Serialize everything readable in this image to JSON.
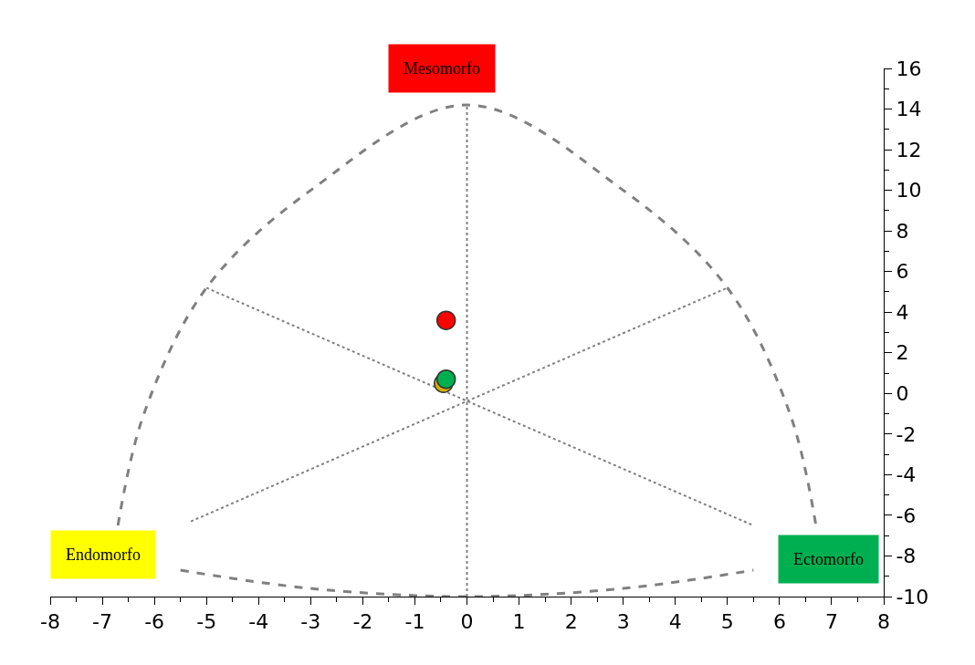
{
  "chart_data": {
    "type": "scatter",
    "xlim": [
      -8,
      8
    ],
    "ylim": [
      -10,
      16
    ],
    "xticks": [
      -8,
      -7,
      -6,
      -5,
      -4,
      -3,
      -2,
      -1,
      0,
      1,
      2,
      3,
      4,
      5,
      6,
      7,
      8
    ],
    "yticks": [
      -10,
      -8,
      -6,
      -4,
      -2,
      0,
      2,
      4,
      6,
      8,
      10,
      12,
      14,
      16
    ],
    "ref_lines": [
      {
        "axis": "x",
        "value": 0,
        "color": "#808080",
        "line_style": "dotted"
      }
    ],
    "grid": false,
    "annotations": [
      "Mesomorfo",
      "Endomorfo",
      "Ectomorfo"
    ],
    "series": [
      {
        "type": "line",
        "color": "#808080",
        "line_style": "dashed",
        "marker": "none",
        "x": [
          -6.7,
          -6.2,
          -5.0,
          -3.0,
          0.0,
          3.0,
          5.0,
          6.2,
          6.7
        ],
        "values": [
          -6.5,
          -1.0,
          5.2,
          10.0,
          14.2,
          10.0,
          5.2,
          -1.0,
          -6.5
        ]
      },
      {
        "type": "line",
        "color": "#808080",
        "line_style": "dashed",
        "marker": "none",
        "x": [
          -5.5,
          -3.0,
          0.0,
          3.0,
          5.5
        ],
        "values": [
          -8.7,
          -9.6,
          -10.0,
          -9.6,
          -8.7
        ]
      },
      {
        "type": "line",
        "color": "#808080",
        "line_style": "dotted",
        "marker": "none",
        "x": [
          -5.0,
          5.5
        ],
        "values": [
          5.2,
          -6.5
        ]
      },
      {
        "type": "line",
        "color": "#808080",
        "line_style": "dotted",
        "marker": "none",
        "x": [
          -5.3,
          5.0
        ],
        "values": [
          -6.3,
          5.2
        ]
      },
      {
        "type": "scatter",
        "marker": "circle",
        "x": [
          -0.45,
          -0.4,
          -0.4
        ],
        "values": [
          0.5,
          3.6,
          0.7
        ],
        "colors": [
          "#d4b000",
          "#ff0000",
          "#00b050"
        ]
      }
    ]
  }
}
